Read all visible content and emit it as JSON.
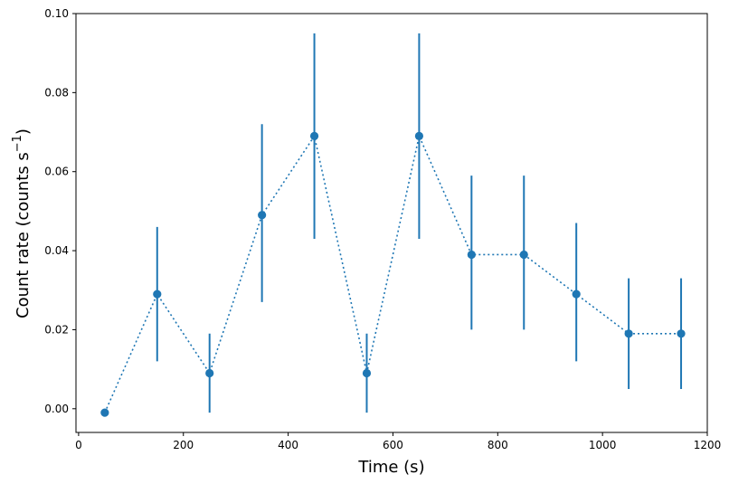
{
  "chart_data": {
    "type": "scatter",
    "title": "",
    "xlabel": "Time (s)",
    "ylabel": {
      "main": "Count rate (counts s",
      "superscript": "−1",
      "close": ")"
    },
    "xlim": [
      -5,
      1200
    ],
    "ylim": [
      -0.006,
      0.1
    ],
    "xticks": [
      0,
      200,
      400,
      600,
      800,
      1000,
      1200
    ],
    "xtick_labels": [
      "0",
      "200",
      "400",
      "600",
      "800",
      "1000",
      "1200"
    ],
    "yticks": [
      0.0,
      0.02,
      0.04,
      0.06,
      0.08,
      0.1
    ],
    "ytick_labels": [
      "0.00",
      "0.02",
      "0.04",
      "0.06",
      "0.08",
      "0.10"
    ],
    "grid": false,
    "legend": "none",
    "series": [
      {
        "color": "#1f77b4",
        "line_style": "dotted",
        "marker": "circle",
        "x": [
          50,
          150,
          250,
          350,
          450,
          550,
          650,
          750,
          850,
          950,
          1050,
          1150
        ],
        "y": [
          -0.001,
          0.029,
          0.009,
          0.049,
          0.069,
          0.009,
          0.069,
          0.039,
          0.039,
          0.029,
          0.019,
          0.019
        ],
        "yerr_low": [
          null,
          0.012,
          -0.001,
          0.027,
          0.043,
          -0.001,
          0.043,
          0.02,
          0.02,
          0.012,
          0.005,
          0.005
        ],
        "yerr_high": [
          null,
          0.046,
          0.019,
          0.072,
          0.095,
          0.019,
          0.095,
          0.059,
          0.059,
          0.047,
          0.033,
          0.033
        ]
      }
    ]
  }
}
